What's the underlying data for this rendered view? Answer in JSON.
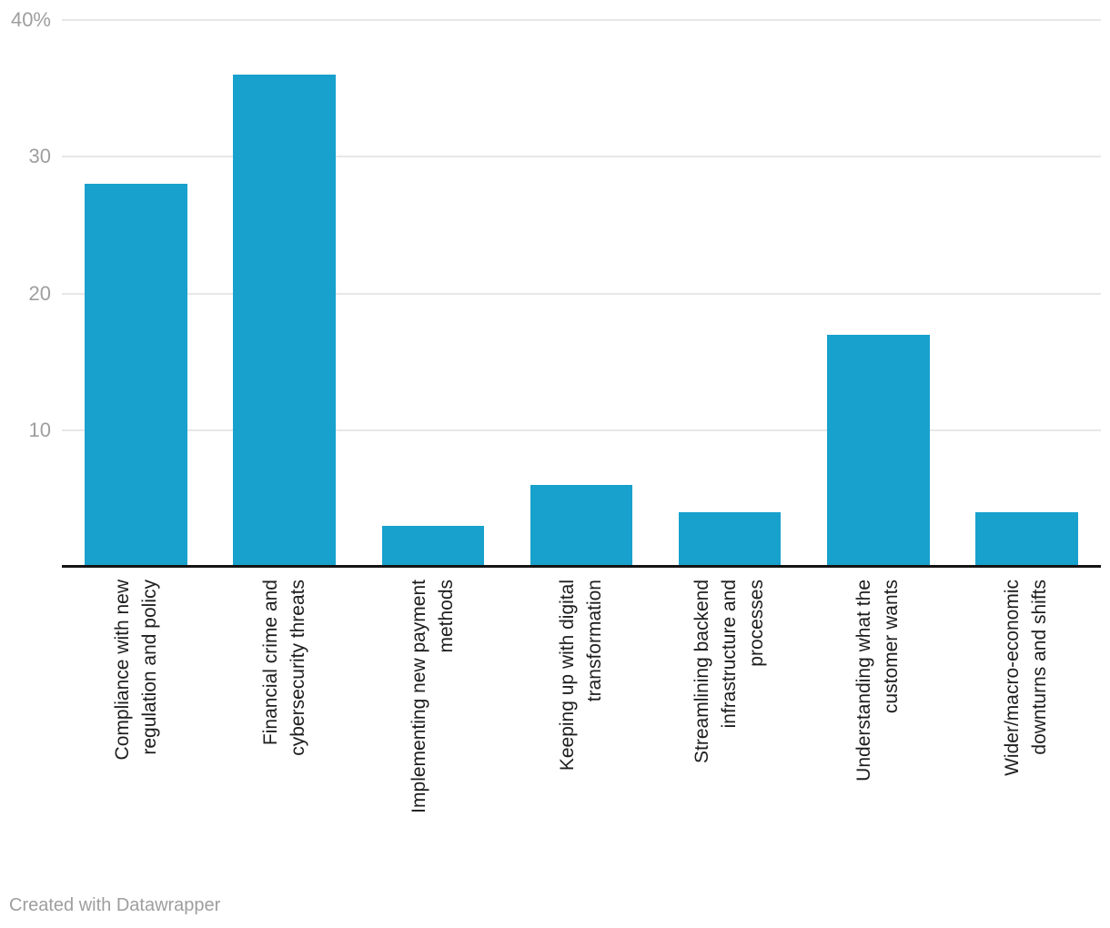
{
  "chart_data": {
    "type": "bar",
    "title": "",
    "xlabel": "",
    "ylabel": "",
    "categories": [
      "Compliance with new\nregulation and policy",
      "Financial crime and\ncybersecurity threats",
      "Implementing new payment\nmethods",
      "Keeping up with digital\ntransformation",
      "Streamlining backend\ninfrastructure and\nprocesses",
      "Understanding what the\ncustomer wants",
      "Wider/macro-economic\ndownturns and shifts"
    ],
    "values": [
      28,
      36,
      3,
      6,
      4,
      17,
      4
    ],
    "unit": "%",
    "ylim": [
      0,
      40
    ],
    "yticks": [
      {
        "value": 40,
        "label": "40%"
      },
      {
        "value": 30,
        "label": "30"
      },
      {
        "value": 20,
        "label": "20"
      },
      {
        "value": 10,
        "label": "10"
      }
    ],
    "grid": "horizontal",
    "legend_position": "none",
    "bar_color": "#18a1cd",
    "gridline_color": "#e7e7e7",
    "axis_tick_color": "#9e9e9e",
    "category_label_color": "#1d1d1d",
    "baseline_color": "#141414"
  },
  "footer": {
    "credit": "Created with Datawrapper"
  }
}
